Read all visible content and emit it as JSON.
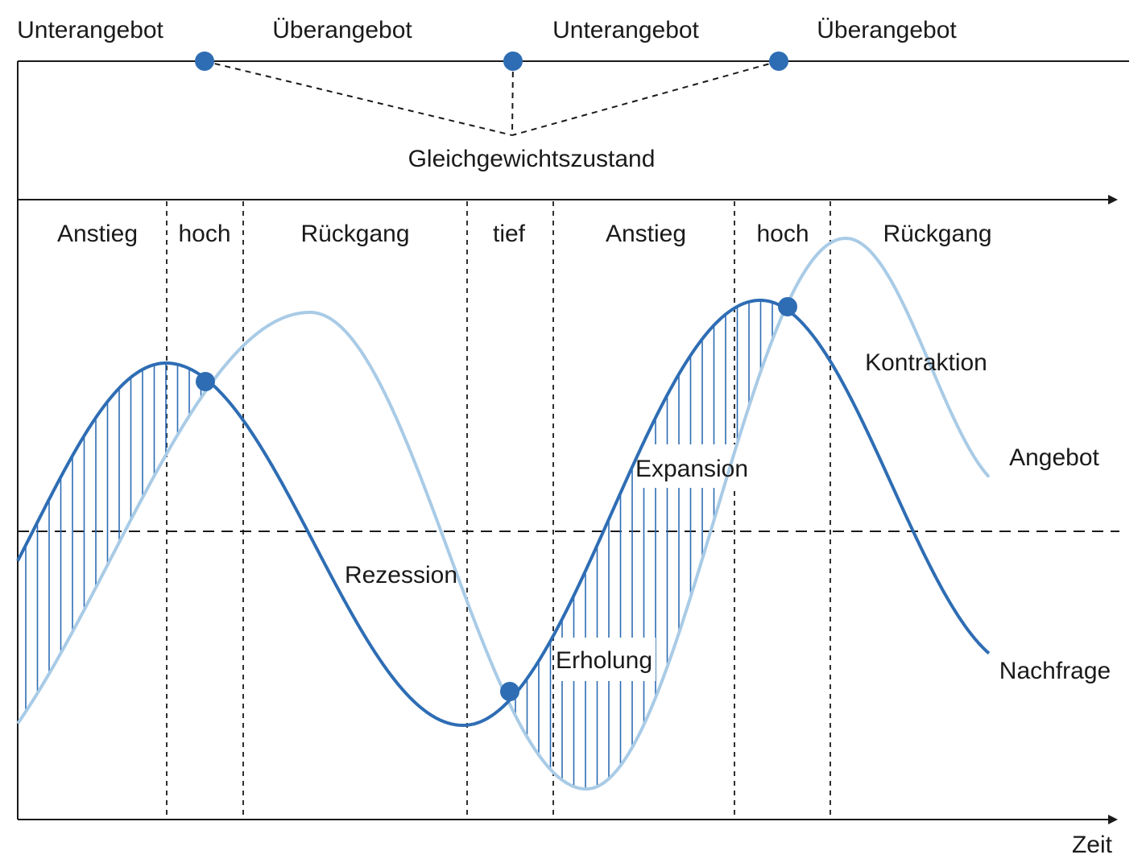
{
  "market_states": [
    "Unterangebot",
    "Überangebot",
    "Unterangebot",
    "Überangebot"
  ],
  "equilibrium_label": "Gleichgewichtszustand",
  "phases": [
    "Anstieg",
    "hoch",
    "Rückgang",
    "tief",
    "Anstieg",
    "hoch",
    "Rückgang"
  ],
  "curve_annotations": {
    "contraction": "Kontraktion",
    "expansion": "Expansion",
    "recession": "Rezession",
    "recovery": "Erholung"
  },
  "legend": {
    "supply": "Angebot",
    "demand": "Nachfrage"
  },
  "x_axis_label": "Zeit",
  "colors": {
    "demand": "#2e6db4",
    "supply": "#a9cbe6",
    "text": "#1a1a1a",
    "equilibrium_point": "#2e6db4"
  }
}
